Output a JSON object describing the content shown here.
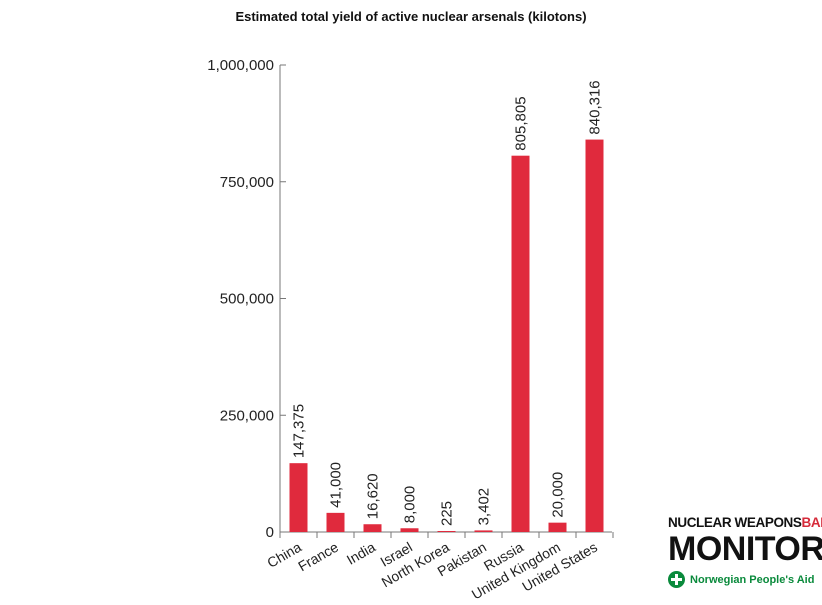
{
  "chart_data": {
    "type": "bar",
    "title": "Estimated total yield of active nuclear arsenals (kilotons)",
    "categories": [
      "China",
      "France",
      "India",
      "Israel",
      "North Korea",
      "Pakistan",
      "Russia",
      "United Kingdom",
      "United States"
    ],
    "values": [
      147375,
      41000,
      16620,
      8000,
      225,
      3402,
      805805,
      20000,
      840316
    ],
    "value_labels": [
      "147,375",
      "41,000",
      "16,620",
      "8,000",
      "225",
      "3,402",
      "805,805",
      "20,000",
      "840,316"
    ],
    "yticks": [
      0,
      250000,
      500000,
      750000,
      1000000
    ],
    "ytick_labels": [
      "0",
      "250,000",
      "500,000",
      "750,000",
      "1,000,000"
    ],
    "ylim": [
      0,
      1000000
    ],
    "xlabel": "",
    "ylabel": "",
    "grid": false,
    "bar_color": "#e02a3d"
  },
  "logo": {
    "line1_a": "NUCLEAR WEAPONS",
    "line1_b": "BAN",
    "line2": "MONITOR",
    "org": "Norwegian People's Aid"
  }
}
